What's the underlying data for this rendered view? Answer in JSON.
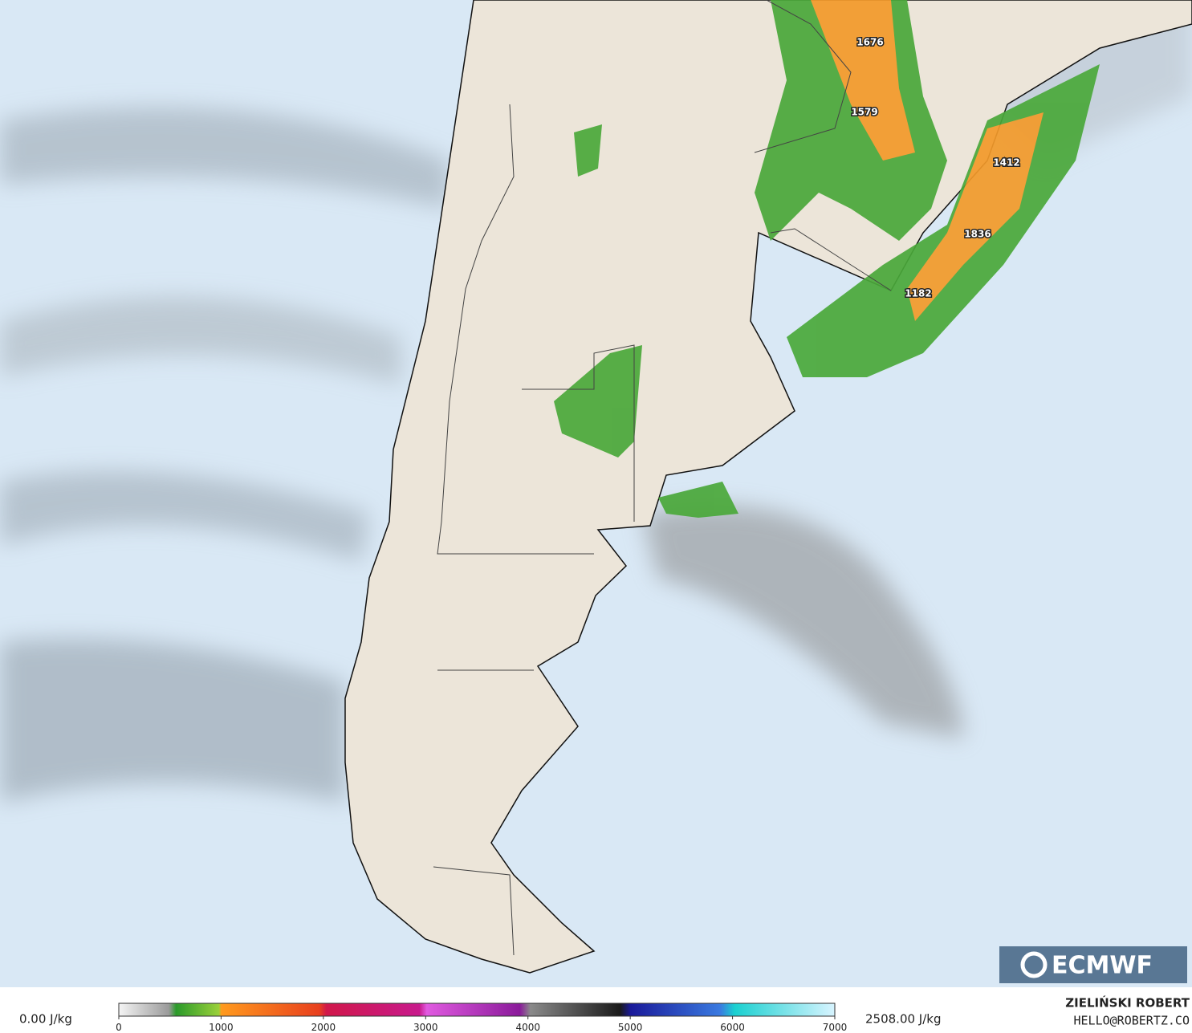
{
  "map": {
    "point_labels": [
      1676,
      1579,
      1412,
      1836,
      1182
    ],
    "logo": "ECMWF",
    "colorbar": {
      "range": [
        0,
        7000
      ],
      "ticks": [
        0,
        1000,
        2000,
        3000,
        4000,
        5000,
        6000,
        7000
      ],
      "min_label": "0.00 J/kg",
      "max_label": "2508.00 J/kg"
    },
    "credit": {
      "name": "ZIELIŃSKI ROBERT",
      "contact": "HELLO@ROBERTZ.CO"
    }
  }
}
